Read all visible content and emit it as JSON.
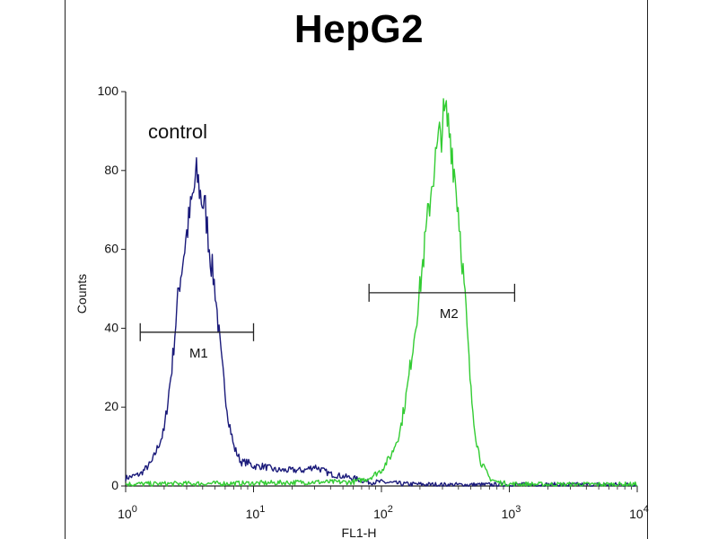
{
  "chart_data": {
    "type": "line",
    "title": "HepG2",
    "xlabel": "FL1-H",
    "ylabel": "Counts",
    "xscale": "log",
    "xlim": [
      1,
      10000
    ],
    "ylim": [
      0,
      100
    ],
    "x_ticks": [
      {
        "base": "10",
        "exp": "0"
      },
      {
        "base": "10",
        "exp": "1"
      },
      {
        "base": "10",
        "exp": "2"
      },
      {
        "base": "10",
        "exp": "3"
      },
      {
        "base": "10",
        "exp": "4"
      }
    ],
    "y_ticks": [
      "0",
      "20",
      "40",
      "60",
      "80",
      "100"
    ],
    "annotations": {
      "control": "control",
      "m1": "M1",
      "m2": "M2"
    },
    "markers": [
      {
        "label": "M1",
        "x_start": 1.3,
        "x_end": 10,
        "y": 39
      },
      {
        "label": "M2",
        "x_start": 80,
        "x_end": 1100,
        "y": 49
      }
    ],
    "series": [
      {
        "color": "#1a1a7a",
        "x": [
          1,
          1.3,
          1.6,
          2,
          2.3,
          2.6,
          3,
          3.3,
          3.6,
          3.9,
          4.2,
          4.6,
          5,
          5.6,
          6.3,
          7,
          8,
          9,
          10,
          12,
          15,
          20,
          25,
          30,
          40,
          60,
          80,
          100,
          150,
          300,
          1000,
          10000
        ],
        "y": [
          2,
          3,
          6,
          14,
          30,
          50,
          64,
          72,
          79,
          73,
          70,
          58,
          50,
          32,
          18,
          10,
          6,
          6,
          5,
          5,
          4,
          4,
          4,
          5,
          3,
          2,
          1,
          1,
          0.5,
          0.3,
          0.3,
          0.3
        ]
      },
      {
        "color": "#33cc33",
        "x": [
          1,
          10,
          30,
          60,
          80,
          100,
          120,
          140,
          160,
          180,
          200,
          220,
          250,
          280,
          300,
          320,
          350,
          400,
          450,
          500,
          550,
          600,
          700,
          800,
          1000,
          2000,
          10000
        ],
        "y": [
          0.5,
          0.7,
          1,
          1,
          2,
          4,
          8,
          14,
          25,
          38,
          50,
          62,
          78,
          87,
          92,
          94,
          88,
          70,
          48,
          24,
          12,
          6,
          2,
          1,
          0.5,
          0.4,
          0.4
        ]
      }
    ]
  }
}
